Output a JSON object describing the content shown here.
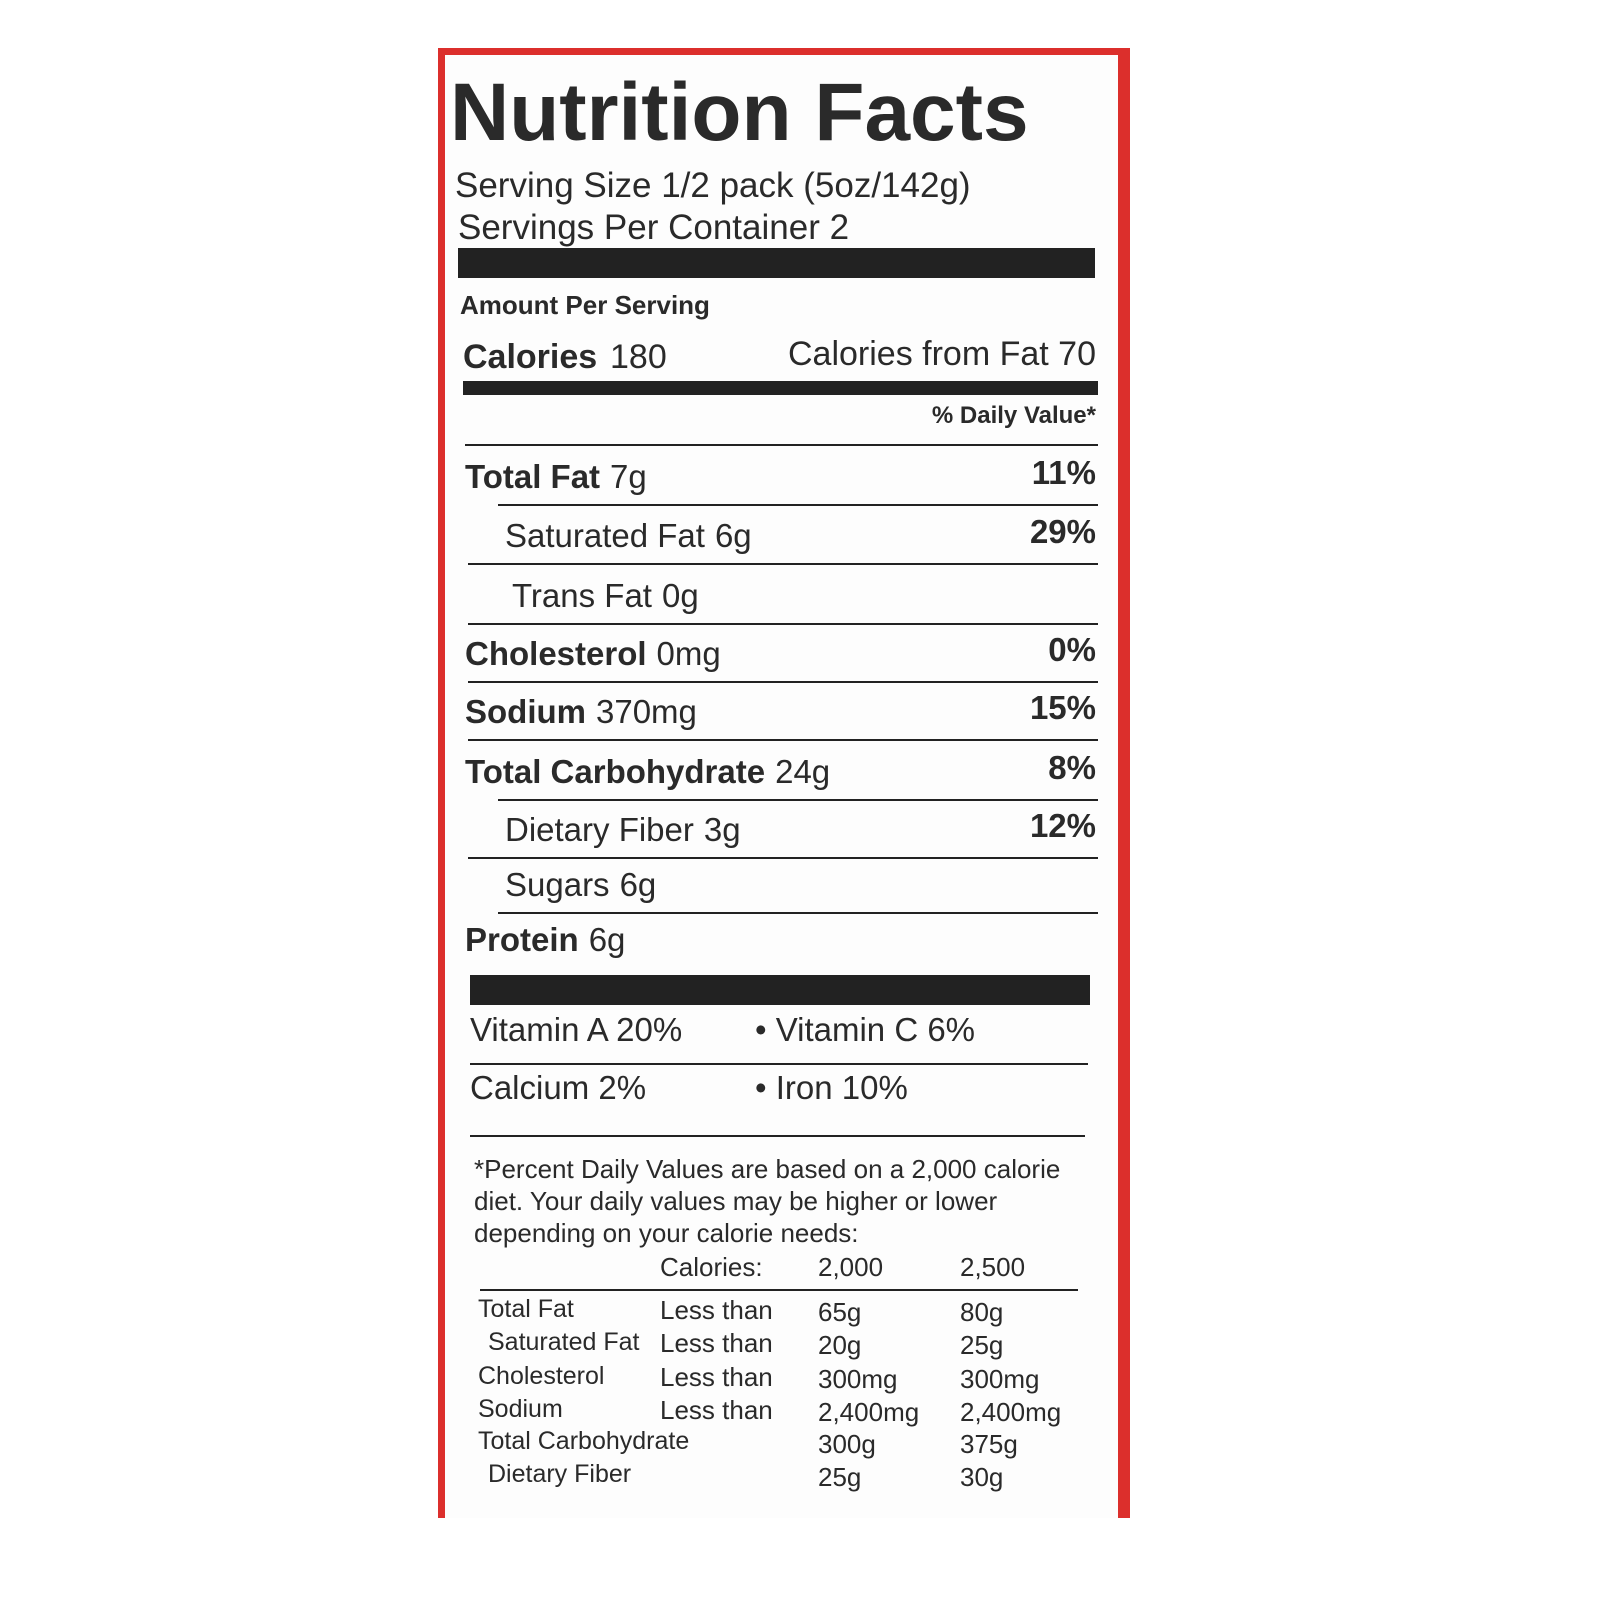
{
  "title": "Nutrition Facts",
  "serving_size": "Serving Size 1/2 pack (5oz/142g)",
  "servings_per_container": "Servings Per Container 2",
  "amount_per_serving": "Amount Per Serving",
  "calories": {
    "label": "Calories",
    "value": "180",
    "from_fat": "Calories from Fat 70"
  },
  "daily_value_header": "% Daily Value*",
  "nutrients": [
    {
      "name": "Total Fat",
      "amount": "7g",
      "dv": "11%",
      "bold": true
    },
    {
      "name": "Saturated Fat",
      "amount": "6g",
      "dv": "29%",
      "bold": false
    },
    {
      "name": "Trans Fat",
      "amount": "0g",
      "bold": false
    },
    {
      "name": "Cholesterol",
      "amount": "0mg",
      "dv": "0%",
      "bold": true
    },
    {
      "name": "Sodium",
      "amount": "370mg",
      "dv": "15%",
      "bold": true
    },
    {
      "name": "Total Carbohydrate",
      "amount": "24g",
      "dv": "8%",
      "bold": true
    },
    {
      "name": "Dietary Fiber",
      "amount": "3g",
      "dv": "12%",
      "bold": false
    },
    {
      "name": "Sugars",
      "amount": "6g",
      "bold": false
    },
    {
      "name": "Protein",
      "amount": "6g",
      "bold": true
    }
  ],
  "vitamins": [
    [
      "Vitamin A 20%",
      "• Vitamin C 6%"
    ],
    [
      "Calcium 2%",
      "• Iron 10%"
    ]
  ],
  "footnote": [
    "*Percent Daily Values are based on a 2,000 calorie",
    "diet. Your daily values may be higher or lower",
    "depending on your calorie needs:"
  ],
  "footnote_table": {
    "header": [
      "Calories:",
      "2,000",
      "2,500"
    ],
    "rows": [
      {
        "name": "Total Fat",
        "limit": "Less than",
        "v2000": "65g",
        "v2500": "80g"
      },
      {
        "name": "Saturated Fat",
        "limit": "Less than",
        "v2000": "20g",
        "v2500": "25g"
      },
      {
        "name": "Cholesterol",
        "limit": "Less than",
        "v2000": "300mg",
        "v2500": "300mg"
      },
      {
        "name": "Sodium",
        "limit": "Less than",
        "v2000": "2,400mg",
        "v2500": "2,400mg"
      },
      {
        "name": "Total Carbohydrate",
        "v2000": "300g",
        "v2500": "375g"
      },
      {
        "name": "Dietary Fiber",
        "v2000": "25g",
        "v2500": "30g"
      }
    ]
  }
}
